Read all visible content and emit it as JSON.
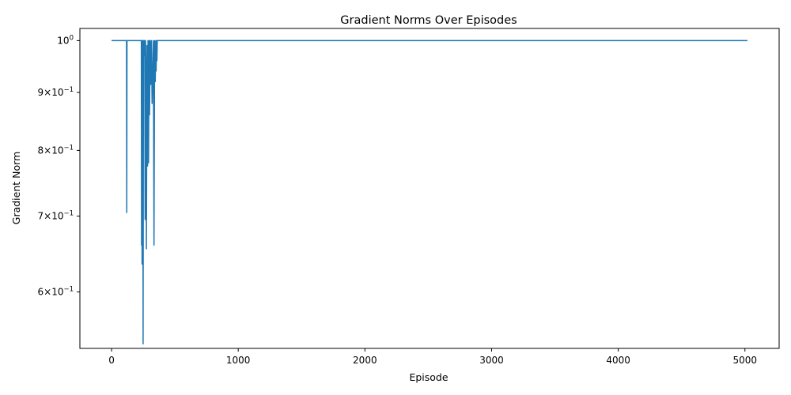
{
  "chart_data": {
    "type": "line",
    "title": "Gradient Norms Over Episodes",
    "xlabel": "Episode",
    "ylabel": "Gradient Norm",
    "y_scale": "log",
    "grid": false,
    "legend": "none",
    "xlim": [
      -250,
      5270
    ],
    "ylim": [
      0.535,
      1.025
    ],
    "x_ticks": [
      {
        "value": 0,
        "label": "0"
      },
      {
        "value": 1000,
        "label": "1000"
      },
      {
        "value": 2000,
        "label": "2000"
      },
      {
        "value": 3000,
        "label": "3000"
      },
      {
        "value": 4000,
        "label": "4000"
      },
      {
        "value": 5000,
        "label": "5000"
      }
    ],
    "y_ticks": [
      {
        "value": 0.6,
        "mantissa": "6",
        "exponent": "−1"
      },
      {
        "value": 0.7,
        "mantissa": "7",
        "exponent": "−1"
      },
      {
        "value": 0.8,
        "mantissa": "8",
        "exponent": "−1"
      },
      {
        "value": 0.9,
        "mantissa": "9",
        "exponent": "−1"
      },
      {
        "value": 1.0,
        "mantissa": "10",
        "exponent": "0"
      }
    ],
    "series": [
      {
        "color": "#1f77b4",
        "x": [
          0,
          118,
          120,
          122,
          124,
          235,
          237,
          239,
          241,
          243,
          245,
          247,
          249,
          252,
          254,
          256,
          258,
          262,
          265,
          268,
          272,
          275,
          280,
          284,
          288,
          292,
          296,
          300,
          305,
          310,
          315,
          320,
          330,
          335,
          340,
          345,
          350,
          352,
          355,
          358,
          361,
          365,
          5020
        ],
        "y": [
          1.0,
          1.0,
          0.705,
          1.0,
          1.0,
          1.0,
          0.66,
          1.0,
          0.635,
          1.0,
          0.64,
          1.0,
          0.54,
          1.0,
          0.98,
          1.0,
          0.97,
          1.0,
          0.695,
          1.0,
          0.93,
          0.655,
          0.99,
          0.775,
          1.0,
          0.78,
          1.0,
          0.86,
          1.0,
          0.915,
          1.0,
          0.88,
          1.0,
          0.66,
          1.0,
          0.92,
          1.0,
          0.94,
          1.0,
          0.96,
          1.0,
          1.0,
          1.0
        ]
      }
    ]
  }
}
